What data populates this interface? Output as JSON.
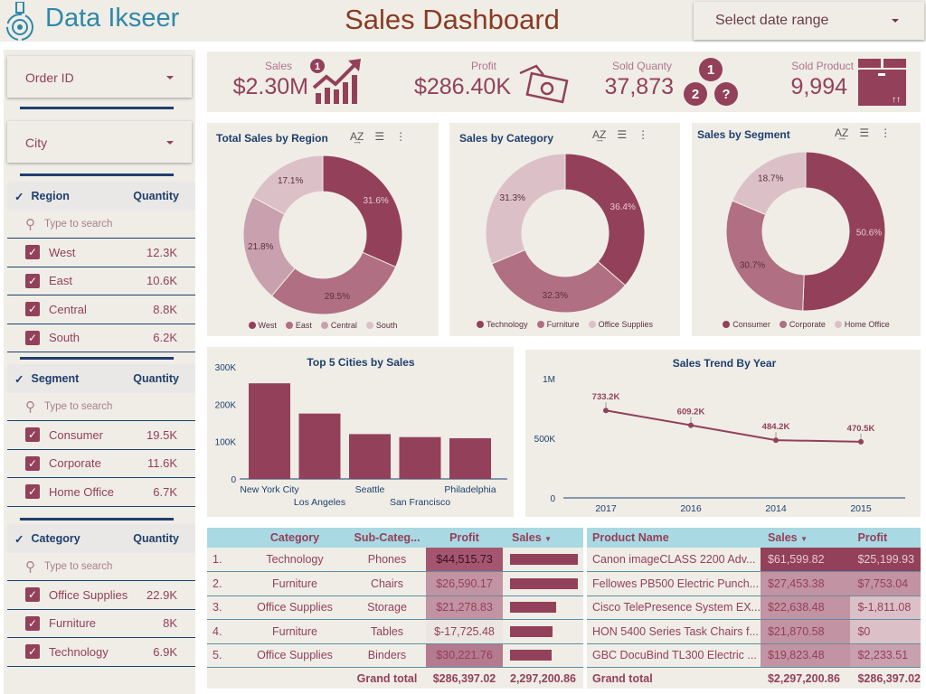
{
  "header": {
    "logo": "Data Ikseer",
    "title": "Sales Dashboard",
    "date_range": "Select date range"
  },
  "sidebar": {
    "order_id": "Order ID",
    "city": "City",
    "search_placeholder": "Type to search",
    "region": {
      "label": "Region",
      "qty": "Quantity",
      "items": [
        {
          "label": "West",
          "value": "12.3K"
        },
        {
          "label": "East",
          "value": "10.6K"
        },
        {
          "label": "Central",
          "value": "8.8K"
        },
        {
          "label": "South",
          "value": "6.2K"
        }
      ]
    },
    "segment": {
      "label": "Segment",
      "qty": "Quantity",
      "items": [
        {
          "label": "Consumer",
          "value": "19.5K"
        },
        {
          "label": "Corporate",
          "value": "11.6K"
        },
        {
          "label": "Home Office",
          "value": "6.7K"
        }
      ]
    },
    "category": {
      "label": "Category",
      "qty": "Quantity",
      "items": [
        {
          "label": "Office Supplies",
          "value": "22.9K"
        },
        {
          "label": "Furniture",
          "value": "8K"
        },
        {
          "label": "Technology",
          "value": "6.9K"
        }
      ]
    }
  },
  "kpi": [
    {
      "label": "Sales",
      "value": "$2.30M"
    },
    {
      "label": "Profit",
      "value": "$286.40K"
    },
    {
      "label": "Sold Quanty",
      "value": "37,873"
    },
    {
      "label": "Sold Product",
      "value": "9,994"
    }
  ],
  "colors": {
    "accent": "#93405a",
    "slice": [
      "#93405a",
      "#b06f82",
      "#c9a0ad",
      "#dcc0c8"
    ],
    "header_blue": "#1f3f6e",
    "table_header": "#a9d9e3"
  },
  "chart_data": [
    {
      "type": "pie",
      "title": "Total Sales by Region",
      "donut": true,
      "labels": [
        "West",
        "East",
        "Central",
        "South"
      ],
      "values": [
        31.6,
        29.5,
        21.8,
        17.1
      ],
      "value_labels": [
        "31.6%",
        "29.5%",
        "21.8%",
        "17.1%"
      ],
      "legend": "bottom"
    },
    {
      "type": "pie",
      "title": "Sales by Category",
      "donut": true,
      "labels": [
        "Technology",
        "Furniture",
        "Office Supplies"
      ],
      "values": [
        36.4,
        32.3,
        31.3
      ],
      "value_labels": [
        "36.4%",
        "32.3%",
        "31.3%"
      ],
      "legend": "bottom"
    },
    {
      "type": "pie",
      "title": "Sales by Segment",
      "donut": true,
      "labels": [
        "Consumer",
        "Corporate",
        "Home Office"
      ],
      "values": [
        50.6,
        30.7,
        18.7
      ],
      "value_labels": [
        "50.6%",
        "30.7%",
        "18.7%"
      ],
      "legend": "bottom"
    },
    {
      "type": "bar",
      "title": "Top 5 Cities by Sales",
      "categories": [
        "New York City",
        "Los Angeles",
        "Seattle",
        "San Francisco",
        "Philadelphia"
      ],
      "values": [
        256000,
        175000,
        120000,
        112000,
        109000
      ],
      "ylim": [
        0,
        300000
      ],
      "yticks": [
        "0",
        "100K",
        "200K",
        "300K"
      ]
    },
    {
      "type": "line",
      "title": "Sales Trend By Year",
      "categories": [
        "2017",
        "2016",
        "2014",
        "2015"
      ],
      "values": [
        733200,
        609200,
        484200,
        470500
      ],
      "data_labels": [
        "733.2K",
        "609.2K",
        "484.2K",
        "470.5K"
      ],
      "ylim": [
        0,
        1000000
      ],
      "yticks": [
        "0",
        "500K",
        "1M"
      ]
    }
  ],
  "table1": {
    "headers": [
      "Category",
      "Sub-Categ...",
      "Profit",
      "Sales"
    ],
    "rows": [
      {
        "n": "1.",
        "cat": "Technology",
        "sub": "Phones",
        "profit": "$44,515.73",
        "sales": 330000
      },
      {
        "n": "2.",
        "cat": "Furniture",
        "sub": "Chairs",
        "profit": "$26,590.17",
        "sales": 328000
      },
      {
        "n": "3.",
        "cat": "Office Supplies",
        "sub": "Storage",
        "profit": "$21,278.83",
        "sales": 224000
      },
      {
        "n": "4.",
        "cat": "Furniture",
        "sub": "Tables",
        "profit": "$-17,725.48",
        "sales": 207000
      },
      {
        "n": "5.",
        "cat": "Office Supplies",
        "sub": "Binders",
        "profit": "$30,221.76",
        "sales": 203000
      }
    ],
    "grand_label": "Grand total",
    "grand_profit": "$286,397.02",
    "grand_sales": "2,297,200.86"
  },
  "table2": {
    "headers": [
      "Product Name",
      "Sales",
      "Profit"
    ],
    "rows": [
      {
        "name": "Canon imageCLASS 2200 Adv...",
        "sales": "$61,599.82",
        "profit": "$25,199.93"
      },
      {
        "name": "Fellowes PB500 Electric Punch...",
        "sales": "$27,453.38",
        "profit": "$7,753.04"
      },
      {
        "name": "Cisco TelePresence System EX...",
        "sales": "$22,638.48",
        "profit": "$-1,811.08"
      },
      {
        "name": "HON 5400 Series Task Chairs f...",
        "sales": "$21,870.58",
        "profit": "$0"
      },
      {
        "name": "GBC DocuBind TL300 Electric ...",
        "sales": "$19,823.48",
        "profit": "$2,233.51"
      }
    ],
    "grand_label": "Grand total",
    "grand_sales": "$2,297,200.86",
    "grand_profit": "$286,397.02"
  }
}
